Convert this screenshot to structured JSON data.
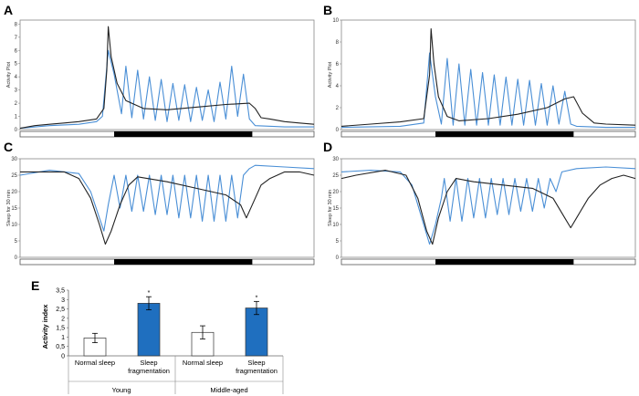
{
  "figure": {
    "panel_labels": [
      "A",
      "B",
      "C",
      "D",
      "E"
    ]
  },
  "colors": {
    "blue": "#4a8fd6",
    "black": "#222222",
    "bar_blue": "#1f6fbf",
    "frame": "#888888"
  },
  "chart_data": [
    {
      "panel": "A",
      "type": "line",
      "ylabel": "Activity Plot",
      "yticks": [
        "0",
        "1",
        "2",
        "3",
        "4",
        "5",
        "6",
        "7",
        "8"
      ],
      "ylim": [
        0,
        8.3
      ],
      "xlim": [
        0,
        1
      ],
      "dark_period": [
        0.32,
        0.79
      ],
      "series": [
        {
          "name": "black",
          "color": "#222222",
          "points": [
            [
              0,
              0.1
            ],
            [
              0.05,
              0.3
            ],
            [
              0.1,
              0.4
            ],
            [
              0.15,
              0.5
            ],
            [
              0.2,
              0.6
            ],
            [
              0.26,
              0.8
            ],
            [
              0.285,
              1.6
            ],
            [
              0.295,
              4.5
            ],
            [
              0.3,
              7.8
            ],
            [
              0.31,
              5.5
            ],
            [
              0.33,
              3.5
            ],
            [
              0.36,
              2.2
            ],
            [
              0.42,
              1.6
            ],
            [
              0.5,
              1.5
            ],
            [
              0.6,
              1.7
            ],
            [
              0.7,
              1.9
            ],
            [
              0.78,
              2.0
            ],
            [
              0.8,
              1.6
            ],
            [
              0.82,
              0.9
            ],
            [
              0.85,
              0.8
            ],
            [
              0.9,
              0.6
            ],
            [
              0.95,
              0.5
            ],
            [
              1.0,
              0.4
            ]
          ]
        },
        {
          "name": "blue",
          "color": "#4a8fd6",
          "points": [
            [
              0,
              0.1
            ],
            [
              0.1,
              0.3
            ],
            [
              0.2,
              0.4
            ],
            [
              0.26,
              0.6
            ],
            [
              0.28,
              1.0
            ],
            [
              0.3,
              6.0
            ],
            [
              0.32,
              4.2
            ],
            [
              0.345,
              1.2
            ],
            [
              0.36,
              4.8
            ],
            [
              0.38,
              0.9
            ],
            [
              0.4,
              4.5
            ],
            [
              0.42,
              0.8
            ],
            [
              0.44,
              4.0
            ],
            [
              0.46,
              0.7
            ],
            [
              0.48,
              3.8
            ],
            [
              0.5,
              0.6
            ],
            [
              0.52,
              3.5
            ],
            [
              0.54,
              0.7
            ],
            [
              0.56,
              3.4
            ],
            [
              0.58,
              0.6
            ],
            [
              0.6,
              3.2
            ],
            [
              0.62,
              0.7
            ],
            [
              0.64,
              3.0
            ],
            [
              0.66,
              0.6
            ],
            [
              0.68,
              3.6
            ],
            [
              0.7,
              0.8
            ],
            [
              0.72,
              4.8
            ],
            [
              0.74,
              1.0
            ],
            [
              0.76,
              4.2
            ],
            [
              0.78,
              0.8
            ],
            [
              0.8,
              0.3
            ],
            [
              0.9,
              0.2
            ],
            [
              1.0,
              0.2
            ]
          ]
        }
      ]
    },
    {
      "panel": "B",
      "type": "line",
      "ylabel": "Activity Plot",
      "yticks": [
        "0",
        "2",
        "4",
        "6",
        "8",
        "10"
      ],
      "ylim": [
        0,
        10
      ],
      "xlim": [
        0,
        1
      ],
      "dark_period": [
        0.32,
        0.79
      ],
      "series": [
        {
          "name": "black",
          "color": "#222222",
          "points": [
            [
              0,
              0.3
            ],
            [
              0.1,
              0.5
            ],
            [
              0.2,
              0.7
            ],
            [
              0.28,
              1.0
            ],
            [
              0.3,
              5.0
            ],
            [
              0.305,
              9.2
            ],
            [
              0.315,
              6.0
            ],
            [
              0.33,
              3.0
            ],
            [
              0.36,
              1.2
            ],
            [
              0.4,
              0.8
            ],
            [
              0.5,
              1.0
            ],
            [
              0.6,
              1.4
            ],
            [
              0.7,
              2.0
            ],
            [
              0.76,
              2.8
            ],
            [
              0.79,
              3.0
            ],
            [
              0.82,
              1.5
            ],
            [
              0.86,
              0.6
            ],
            [
              0.9,
              0.5
            ],
            [
              1.0,
              0.4
            ]
          ]
        },
        {
          "name": "blue",
          "color": "#4a8fd6",
          "points": [
            [
              0,
              0.2
            ],
            [
              0.2,
              0.3
            ],
            [
              0.28,
              0.6
            ],
            [
              0.3,
              7.0
            ],
            [
              0.32,
              3.0
            ],
            [
              0.34,
              0.5
            ],
            [
              0.36,
              6.5
            ],
            [
              0.38,
              0.4
            ],
            [
              0.4,
              6.0
            ],
            [
              0.42,
              0.4
            ],
            [
              0.44,
              5.5
            ],
            [
              0.46,
              0.4
            ],
            [
              0.48,
              5.2
            ],
            [
              0.5,
              0.4
            ],
            [
              0.52,
              5.0
            ],
            [
              0.54,
              0.4
            ],
            [
              0.56,
              4.8
            ],
            [
              0.58,
              0.4
            ],
            [
              0.6,
              4.6
            ],
            [
              0.62,
              0.4
            ],
            [
              0.64,
              4.5
            ],
            [
              0.66,
              0.4
            ],
            [
              0.68,
              4.2
            ],
            [
              0.7,
              0.4
            ],
            [
              0.72,
              4.0
            ],
            [
              0.74,
              0.5
            ],
            [
              0.76,
              3.5
            ],
            [
              0.78,
              0.5
            ],
            [
              0.8,
              0.3
            ],
            [
              0.9,
              0.2
            ],
            [
              1.0,
              0.2
            ]
          ]
        }
      ]
    },
    {
      "panel": "C",
      "type": "line",
      "ylabel": "Sleep for 30 min",
      "yticks": [
        "0",
        "5",
        "10",
        "15",
        "20",
        "25",
        "30"
      ],
      "ylim": [
        0,
        30
      ],
      "xlim": [
        0,
        1
      ],
      "dark_period": [
        0.32,
        0.79
      ],
      "series": [
        {
          "name": "black",
          "color": "#222222",
          "points": [
            [
              0,
              26
            ],
            [
              0.05,
              26
            ],
            [
              0.15,
              26
            ],
            [
              0.2,
              24
            ],
            [
              0.24,
              18
            ],
            [
              0.27,
              10
            ],
            [
              0.29,
              4
            ],
            [
              0.31,
              8
            ],
            [
              0.34,
              16
            ],
            [
              0.37,
              22
            ],
            [
              0.4,
              24.5
            ],
            [
              0.5,
              23
            ],
            [
              0.6,
              21
            ],
            [
              0.7,
              19
            ],
            [
              0.75,
              16
            ],
            [
              0.77,
              12
            ],
            [
              0.8,
              18
            ],
            [
              0.82,
              22
            ],
            [
              0.85,
              24
            ],
            [
              0.9,
              26
            ],
            [
              0.95,
              26
            ],
            [
              1.0,
              25
            ]
          ]
        },
        {
          "name": "blue",
          "color": "#4a8fd6",
          "points": [
            [
              0,
              25
            ],
            [
              0.1,
              26.5
            ],
            [
              0.2,
              25.5
            ],
            [
              0.24,
              20
            ],
            [
              0.27,
              12
            ],
            [
              0.285,
              8
            ],
            [
              0.3,
              16
            ],
            [
              0.32,
              25
            ],
            [
              0.34,
              15
            ],
            [
              0.36,
              25
            ],
            [
              0.38,
              14
            ],
            [
              0.4,
              25
            ],
            [
              0.42,
              14
            ],
            [
              0.44,
              25
            ],
            [
              0.46,
              13
            ],
            [
              0.48,
              25
            ],
            [
              0.5,
              13
            ],
            [
              0.52,
              25
            ],
            [
              0.54,
              12
            ],
            [
              0.56,
              25
            ],
            [
              0.58,
              12
            ],
            [
              0.6,
              25
            ],
            [
              0.62,
              11
            ],
            [
              0.64,
              25
            ],
            [
              0.66,
              11
            ],
            [
              0.68,
              25
            ],
            [
              0.7,
              11
            ],
            [
              0.72,
              25
            ],
            [
              0.74,
              12
            ],
            [
              0.76,
              25
            ],
            [
              0.78,
              27
            ],
            [
              0.8,
              28
            ],
            [
              0.9,
              27.5
            ],
            [
              1.0,
              27
            ]
          ]
        }
      ]
    },
    {
      "panel": "D",
      "type": "line",
      "ylabel": "Sleep for 30 min",
      "yticks": [
        "0",
        "5",
        "10",
        "15",
        "20",
        "25",
        "30"
      ],
      "ylim": [
        0,
        30
      ],
      "xlim": [
        0,
        1
      ],
      "dark_period": [
        0.32,
        0.79
      ],
      "series": [
        {
          "name": "black",
          "color": "#222222",
          "points": [
            [
              0,
              24
            ],
            [
              0.05,
              25
            ],
            [
              0.15,
              26.5
            ],
            [
              0.22,
              25
            ],
            [
              0.26,
              18
            ],
            [
              0.29,
              8
            ],
            [
              0.31,
              4
            ],
            [
              0.33,
              12
            ],
            [
              0.36,
              20
            ],
            [
              0.39,
              24
            ],
            [
              0.45,
              23
            ],
            [
              0.55,
              22
            ],
            [
              0.65,
              21
            ],
            [
              0.72,
              18
            ],
            [
              0.76,
              12
            ],
            [
              0.78,
              9
            ],
            [
              0.8,
              12
            ],
            [
              0.84,
              18
            ],
            [
              0.88,
              22
            ],
            [
              0.92,
              24
            ],
            [
              0.96,
              25
            ],
            [
              1.0,
              24
            ]
          ]
        },
        {
          "name": "blue",
          "color": "#4a8fd6",
          "points": [
            [
              0,
              26
            ],
            [
              0.1,
              26.5
            ],
            [
              0.2,
              26
            ],
            [
              0.24,
              22
            ],
            [
              0.27,
              13
            ],
            [
              0.3,
              4
            ],
            [
              0.32,
              10
            ],
            [
              0.34,
              18
            ],
            [
              0.35,
              24
            ],
            [
              0.37,
              11
            ],
            [
              0.39,
              24
            ],
            [
              0.41,
              11
            ],
            [
              0.43,
              24
            ],
            [
              0.45,
              12
            ],
            [
              0.47,
              24
            ],
            [
              0.49,
              12
            ],
            [
              0.51,
              24
            ],
            [
              0.53,
              13
            ],
            [
              0.55,
              24
            ],
            [
              0.57,
              13
            ],
            [
              0.59,
              24
            ],
            [
              0.61,
              14
            ],
            [
              0.63,
              24
            ],
            [
              0.65,
              14
            ],
            [
              0.67,
              24
            ],
            [
              0.69,
              15
            ],
            [
              0.71,
              24
            ],
            [
              0.73,
              20
            ],
            [
              0.75,
              26
            ],
            [
              0.8,
              27
            ],
            [
              0.9,
              27.5
            ],
            [
              1.0,
              27
            ]
          ]
        }
      ]
    },
    {
      "panel": "E",
      "type": "bar",
      "ylabel": "Activity index",
      "yticks": [
        "0",
        "0,5",
        "1",
        "1,5",
        "2",
        "2,5",
        "3",
        "3,5"
      ],
      "ylim": [
        0,
        3.5
      ],
      "groups": [
        "Young",
        "Middle-aged"
      ],
      "categories": [
        "Normal sleep",
        "Sleep fragmentation",
        "Normal sleep",
        "Sleep fragmentation"
      ],
      "category_lines": [
        [
          "Normal sleep"
        ],
        [
          "Sleep",
          "fragmentation"
        ],
        [
          "Normal sleep"
        ],
        [
          "Sleep",
          "fragmentation"
        ]
      ],
      "values": [
        0.95,
        2.8,
        1.25,
        2.55
      ],
      "errors": [
        0.25,
        0.35,
        0.35,
        0.35
      ],
      "significance": [
        "",
        "*",
        "",
        "*"
      ],
      "fills": [
        "#ffffff",
        "#1f6fbf",
        "#ffffff",
        "#1f6fbf"
      ]
    }
  ]
}
